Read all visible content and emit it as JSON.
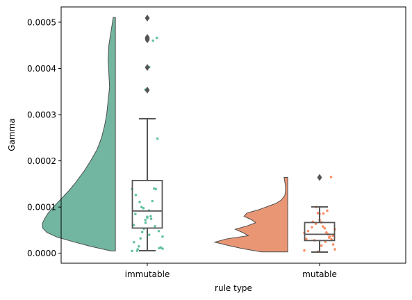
{
  "chart_data": {
    "type": "raincloud",
    "xlabel": "rule type",
    "ylabel": "Gamma",
    "ylim": [
      -2.15e-05,
      0.000533
    ],
    "yticks": [
      0.0,
      0.0001,
      0.0002,
      0.0003,
      0.0004,
      0.0005
    ],
    "ytick_labels": [
      "0.0000",
      "0.0001",
      "0.0002",
      "0.0003",
      "0.0004",
      "0.0005"
    ],
    "categories": [
      "immutable",
      "mutable"
    ],
    "groups": [
      {
        "label": "immutable",
        "color": "#66c2a5",
        "violin_color": "#72b6a1",
        "violin": {
          "y": [
            5e-06,
            1.5e-05,
            2.5e-05,
            3.5e-05,
            4.5e-05,
            5.5e-05,
            6.5e-05,
            7.5e-05,
            8.5e-05,
            9.5e-05,
            0.000105,
            0.000115,
            0.000125,
            0.000135,
            0.00015,
            0.000165,
            0.00018,
            0.0002,
            0.000225,
            0.00025,
            0.000275,
            0.0003,
            0.00033,
            0.00036,
            0.00039,
            0.00042,
            0.00045,
            0.00048,
            0.00051
          ],
          "width": [
            0.06,
            0.34,
            0.58,
            0.8,
            0.94,
            1.0,
            1.0,
            0.97,
            0.93,
            0.88,
            0.82,
            0.76,
            0.7,
            0.64,
            0.56,
            0.49,
            0.42,
            0.34,
            0.25,
            0.19,
            0.15,
            0.12,
            0.1,
            0.08,
            0.09,
            0.1,
            0.09,
            0.06,
            0.03
          ]
        },
        "box": {
          "whisker_low": 5.5e-06,
          "q1": 5.45e-05,
          "median": 9.15e-05,
          "q3": 0.0001575,
          "whisker_high": 0.000291
        },
        "outliers": [
          0.000353,
          0.000402,
          0.000462,
          0.000465,
          0.000467,
          0.000509
        ],
        "points": [
          [
            5e-06,
            0.000354
          ],
          [
            1e-05,
            0.000403
          ],
          [
            1.2e-05,
            0.00046
          ],
          [
            1.1e-05,
            0.000466
          ],
          [
            0.000248,
            1.27e-05
          ],
          [
            0.000139,
            0.000139
          ],
          [
            0.00014,
            0.000126
          ],
          [
            0.000113,
            0.000111
          ],
          [
            8e-05,
            9.75e-05
          ],
          [
            9.25e-05,
            7.9e-05
          ],
          [
            7.7e-05,
            7.45e-05
          ],
          [
            6.6e-05,
            5.85e-05
          ],
          [
            5.3e-05,
            4.8e-05
          ],
          [
            4.6e-05,
            3.6e-05
          ],
          [
            3.2e-05,
            2.4e-05
          ],
          [
            1.5e-05,
            8.5e-06
          ],
          [
            5.5e-06,
            0.0001
          ],
          [
            8.5e-05,
            7.2e-05
          ],
          [
            6.1e-05,
            4e-05
          ]
        ]
      },
      {
        "label": "mutable",
        "color": "#fc8d62",
        "violin_color": "#e99675",
        "violin": {
          "y": [
            3e-06,
            1e-05,
            1.7e-05,
            2.4e-05,
            3.1e-05,
            3.8e-05,
            4.5e-05,
            5.2e-05,
            5.9e-05,
            6.6e-05,
            7.3e-05,
            8e-05,
            8.7e-05,
            9.4e-05,
            0.000101,
            0.000108,
            0.000115,
            0.000125,
            0.000135,
            0.000145,
            0.000155,
            0.000164
          ],
          "width": [
            0.36,
            0.62,
            0.82,
            1.0,
            0.84,
            0.54,
            0.62,
            0.72,
            0.56,
            0.44,
            0.5,
            0.6,
            0.56,
            0.4,
            0.28,
            0.16,
            0.09,
            0.04,
            0.03,
            0.03,
            0.04,
            0.05
          ]
        },
        "box": {
          "whisker_low": 2.5e-06,
          "q1": 2.75e-05,
          "median": 4.1e-05,
          "q3": 6.65e-05,
          "whisker_high": 0.0001005
        },
        "outliers": [
          0.000164
        ],
        "points": [
          [
            6e-06,
            3.5e-06
          ],
          [
            8.5e-06,
            1.65e-05
          ],
          [
            1.9e-05,
            2.5e-05
          ],
          [
            3e-05,
            3.4e-05
          ],
          [
            3.6e-05,
            3.8e-05
          ],
          [
            4.1e-05,
            4.4e-05
          ],
          [
            4.5e-05,
            4.8e-05
          ],
          [
            5.4e-05,
            5.6e-05
          ],
          [
            5.8e-05,
            6.4e-05
          ],
          [
            6.7e-05,
            7.2e-05
          ],
          [
            8.5e-05,
            8.6e-05
          ],
          [
            8.7e-05,
            9.2e-05
          ],
          [
            0.0001,
            0.000165
          ],
          [
            2.8e-05,
            5.2e-05
          ],
          [
            6.8e-05,
            3.1e-05
          ]
        ]
      }
    ]
  }
}
